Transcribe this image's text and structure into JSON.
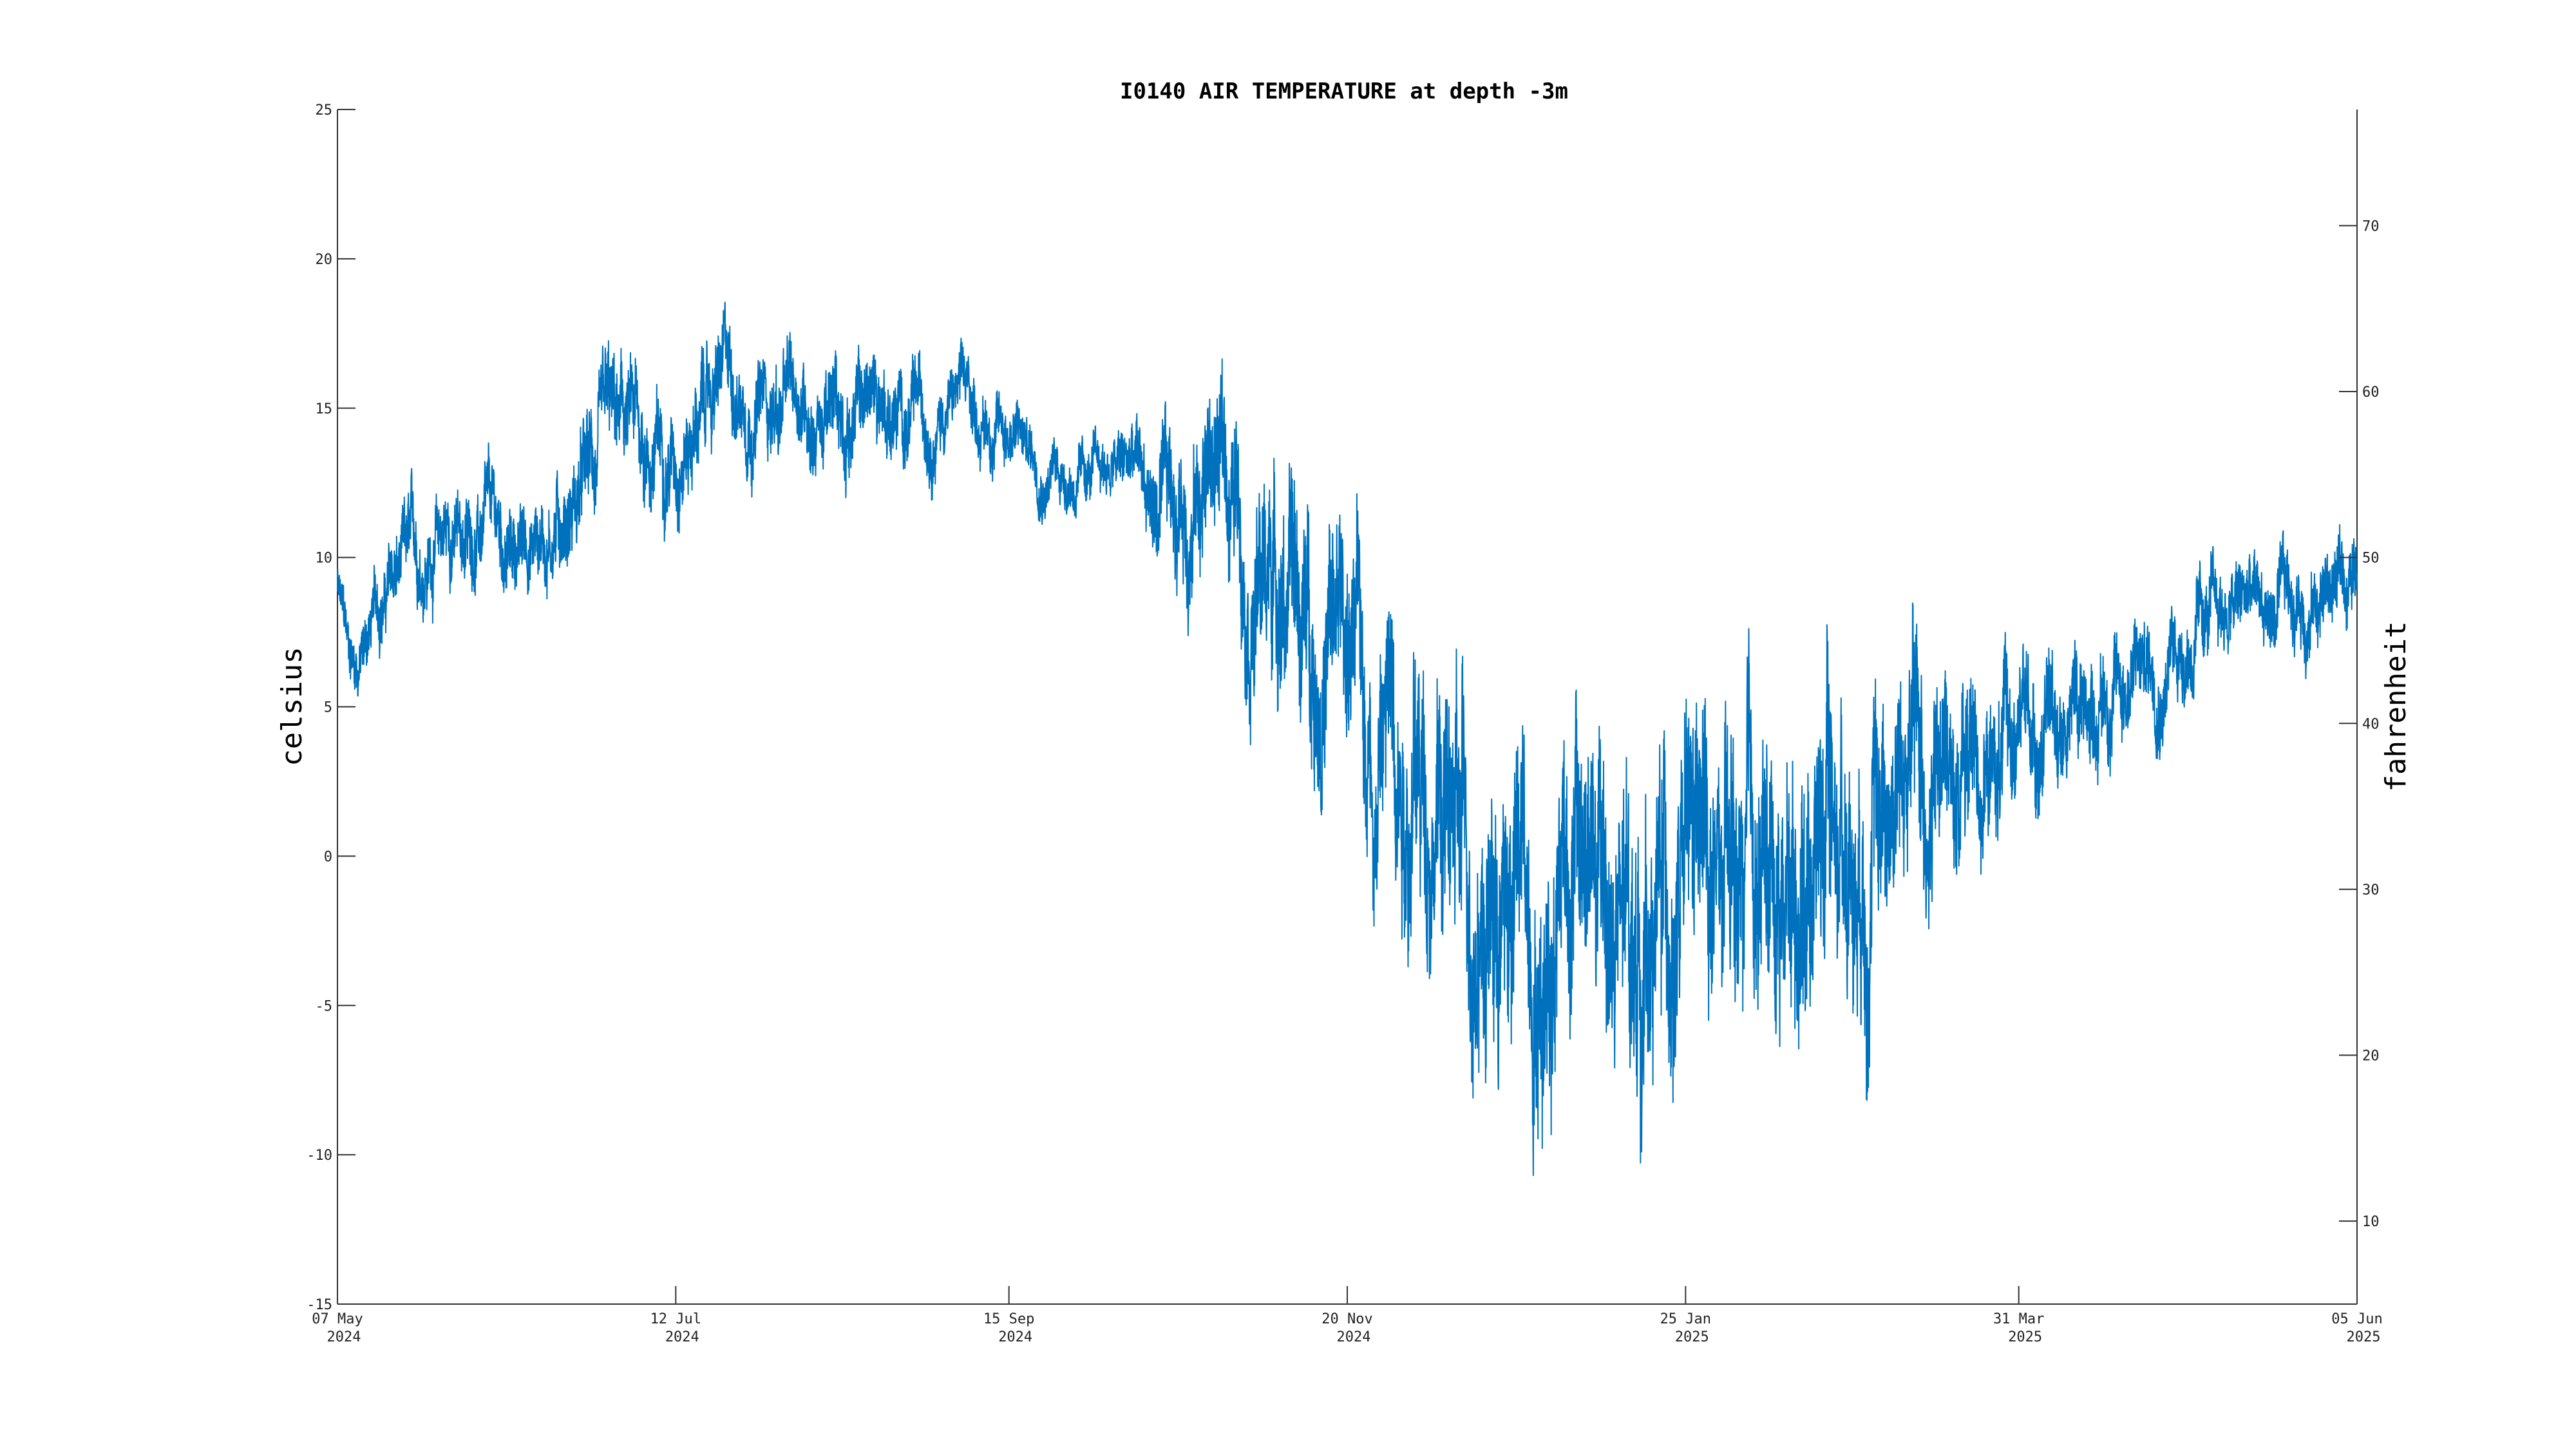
{
  "chart_data": {
    "type": "line",
    "title": "I0140 AIR TEMPERATURE at depth -3m",
    "ylabel": "celsius",
    "y2label": "fahrenheit",
    "ylim": [
      -15,
      25
    ],
    "y2lim": [
      5,
      77
    ],
    "xlim": [
      "2024-05-07",
      "2025-06-05"
    ],
    "grid": false,
    "yticks": [
      "-15",
      "-10",
      "-5",
      "0",
      "5",
      "10",
      "15",
      "20",
      "25"
    ],
    "y2ticks": [
      "10",
      "20",
      "30",
      "40",
      "50",
      "60",
      "70"
    ],
    "xticks": [
      {
        "date": "2024-05-07",
        "label1": "07 May",
        "label2": "2024"
      },
      {
        "date": "2024-07-12",
        "label1": "12 Jul",
        "label2": "2024"
      },
      {
        "date": "2024-09-15",
        "label1": "15 Sep",
        "label2": "2024"
      },
      {
        "date": "2024-11-20",
        "label1": "20 Nov",
        "label2": "2024"
      },
      {
        "date": "2025-01-25",
        "label1": "25 Jan",
        "label2": "2025"
      },
      {
        "date": "2025-03-31",
        "label1": "31 Mar",
        "label2": "2025"
      },
      {
        "date": "2025-06-05",
        "label1": "05 Jun",
        "label2": "2025"
      }
    ],
    "series": [
      {
        "color": "#0072BD",
        "x": [
          "2024-05-07",
          "2024-05-09",
          "2024-05-11",
          "2024-05-14",
          "2024-05-17",
          "2024-05-20",
          "2024-05-24",
          "2024-05-28",
          "2024-06-01",
          "2024-06-05",
          "2024-06-09",
          "2024-06-13",
          "2024-06-17",
          "2024-06-21",
          "2024-06-25",
          "2024-06-29",
          "2024-07-03",
          "2024-07-07",
          "2024-07-12",
          "2024-07-17",
          "2024-07-22",
          "2024-07-27",
          "2024-08-01",
          "2024-08-06",
          "2024-08-11",
          "2024-08-16",
          "2024-08-21",
          "2024-08-26",
          "2024-08-31",
          "2024-09-05",
          "2024-09-10",
          "2024-09-15",
          "2024-09-20",
          "2024-09-25",
          "2024-09-30",
          "2024-10-05",
          "2024-10-10",
          "2024-10-15",
          "2024-10-20",
          "2024-10-25",
          "2024-10-30",
          "2024-11-03",
          "2024-11-07",
          "2024-11-11",
          "2024-11-15",
          "2024-11-20",
          "2024-11-25",
          "2024-11-30",
          "2024-12-04",
          "2024-12-08",
          "2024-12-12",
          "2024-12-16",
          "2024-12-20",
          "2024-12-24",
          "2024-12-28",
          "2025-01-01",
          "2025-01-05",
          "2025-01-09",
          "2025-01-13",
          "2025-01-17",
          "2025-01-21",
          "2025-01-25",
          "2025-01-29",
          "2025-02-02",
          "2025-02-06",
          "2025-02-10",
          "2025-02-14",
          "2025-02-18",
          "2025-02-22",
          "2025-02-26",
          "2025-03-02",
          "2025-03-06",
          "2025-03-10",
          "2025-03-14",
          "2025-03-18",
          "2025-03-22",
          "2025-03-26",
          "2025-03-31",
          "2025-04-05",
          "2025-04-10",
          "2025-04-15",
          "2025-04-20",
          "2025-04-25",
          "2025-04-30",
          "2025-05-05",
          "2025-05-10",
          "2025-05-15",
          "2025-05-20",
          "2025-05-25",
          "2025-05-30",
          "2025-06-05"
        ],
        "y": [
          9,
          7,
          6.5,
          8,
          9,
          9.5,
          10,
          11,
          10.5,
          11,
          10,
          10.5,
          11,
          12,
          12.5,
          13.5,
          14,
          13.5,
          14,
          15,
          16,
          15.5,
          15,
          15.5,
          14.5,
          15,
          15.5,
          14.5,
          15,
          15.5,
          14.5,
          14.5,
          13.5,
          13,
          12.5,
          13,
          13,
          11,
          12,
          13.5,
          12,
          9.5,
          10,
          8,
          7,
          7.5,
          4,
          6,
          2,
          3,
          -1,
          0,
          -2,
          -1,
          -3,
          2,
          0,
          -2,
          -4,
          -3,
          -1,
          -2,
          -1,
          -3,
          -2,
          -1,
          0,
          1,
          2,
          1,
          2,
          3,
          3,
          2.5,
          3,
          3.5,
          3,
          4,
          4.5,
          5,
          5.5,
          6,
          6.5,
          7,
          7.5,
          8,
          8.5,
          8,
          8.5,
          9,
          9.5
        ],
        "amp": [
          1.2,
          1.4,
          1.5,
          1.6,
          1.8,
          2,
          2,
          2,
          2,
          2,
          2,
          2,
          2.2,
          2.4,
          2.5,
          2.5,
          2.5,
          2.4,
          2.3,
          2.3,
          2.3,
          2.2,
          2.2,
          2.2,
          2.2,
          2.2,
          2.2,
          2,
          1.8,
          1.6,
          1.6,
          1.6,
          1.5,
          1.4,
          1.4,
          1.4,
          2,
          3,
          3.5,
          3.8,
          4,
          4.5,
          4.5,
          5,
          5,
          5,
          5.5,
          6,
          6,
          6,
          6.5,
          6.5,
          6.5,
          6.5,
          6.5,
          6.5,
          6.5,
          6.5,
          6.5,
          6.5,
          6.5,
          6.5,
          6.5,
          6.5,
          6.5,
          6.5,
          6.5,
          6.5,
          6.5,
          6,
          6,
          5.5,
          5.5,
          5,
          4.5,
          4,
          3.5,
          3,
          3,
          2.8,
          2.6,
          2.4,
          2.4,
          2.2,
          2.2,
          2,
          2,
          2,
          2,
          2,
          2
        ]
      }
    ]
  }
}
